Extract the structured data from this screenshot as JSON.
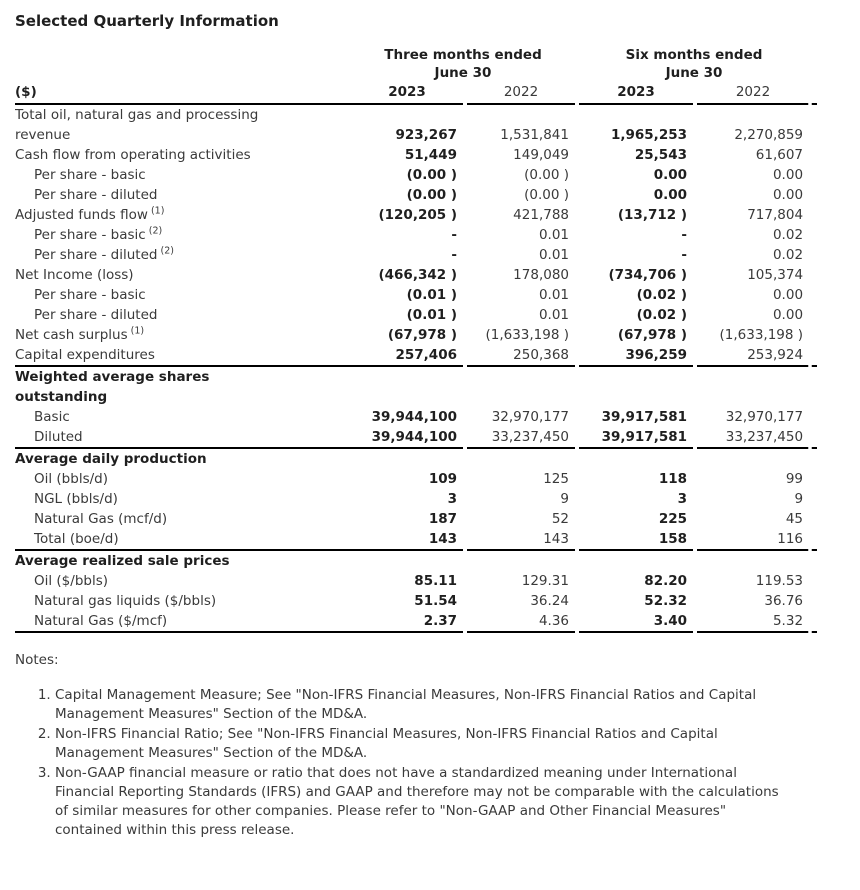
{
  "title": "Selected Quarterly Information",
  "colors": {
    "text": "#3a3a3a",
    "emphasis": "#1f1f1f",
    "rule": "#000000",
    "background": "#ffffff"
  },
  "table": {
    "unit_label": "($)",
    "col_groups": [
      {
        "label": "Three months ended",
        "sub": "June 30"
      },
      {
        "label": "Six months ended",
        "sub": "June 30"
      }
    ],
    "year_headers": [
      "2023",
      "2022",
      "2023",
      "2022"
    ],
    "rows": [
      {
        "type": "data",
        "label": "Total oil, natural gas and processing\nrevenue",
        "indent": false,
        "sup": "",
        "values": [
          "923,267",
          "1,531,841",
          "1,965,253",
          "2,270,859"
        ],
        "rule_below": false
      },
      {
        "type": "data",
        "label": "Cash flow from operating activities",
        "indent": false,
        "sup": "",
        "values": [
          "51,449",
          "149,049",
          "25,543",
          "61,607"
        ],
        "rule_below": false
      },
      {
        "type": "data",
        "label": "Per share - basic",
        "indent": true,
        "sup": "",
        "values": [
          "(0.00 )",
          "(0.00 )",
          "0.00",
          "0.00"
        ],
        "rule_below": false
      },
      {
        "type": "data",
        "label": "Per share - diluted",
        "indent": true,
        "sup": "",
        "values": [
          "(0.00 )",
          "(0.00 )",
          "0.00",
          "0.00"
        ],
        "rule_below": false
      },
      {
        "type": "data",
        "label": "Adjusted funds flow",
        "indent": false,
        "sup": "(1)",
        "values": [
          "(120,205 )",
          "421,788",
          "(13,712 )",
          "717,804"
        ],
        "rule_below": false
      },
      {
        "type": "data",
        "label": "Per share - basic",
        "indent": true,
        "sup": "(2)",
        "values": [
          "-",
          "0.01",
          "-",
          "0.02"
        ],
        "rule_below": false
      },
      {
        "type": "data",
        "label": "Per share - diluted",
        "indent": true,
        "sup": "(2)",
        "values": [
          "-",
          "0.01",
          "-",
          "0.02"
        ],
        "rule_below": false
      },
      {
        "type": "data",
        "label": "Net Income (loss)",
        "indent": false,
        "sup": "",
        "values": [
          "(466,342 )",
          "178,080",
          "(734,706 )",
          "105,374"
        ],
        "rule_below": false
      },
      {
        "type": "data",
        "label": "Per share - basic",
        "indent": true,
        "sup": "",
        "values": [
          "(0.01 )",
          "0.01",
          "(0.02 )",
          "0.00"
        ],
        "rule_below": false
      },
      {
        "type": "data",
        "label": "Per share - diluted",
        "indent": true,
        "sup": "",
        "values": [
          "(0.01 )",
          "0.01",
          "(0.02 )",
          "0.00"
        ],
        "rule_below": false
      },
      {
        "type": "data",
        "label": "Net cash surplus",
        "indent": false,
        "sup": "(1)",
        "values": [
          "(67,978 )",
          "(1,633,198 )",
          "(67,978 )",
          "(1,633,198 )"
        ],
        "rule_below": false
      },
      {
        "type": "data",
        "label": "Capital expenditures",
        "indent": false,
        "sup": "",
        "values": [
          "257,406",
          "250,368",
          "396,259",
          "253,924"
        ],
        "rule_below": true
      },
      {
        "type": "section",
        "label": "Weighted average shares\noutstanding",
        "indent": false,
        "sup": "",
        "values": [
          "",
          "",
          "",
          ""
        ],
        "rule_below": false
      },
      {
        "type": "data",
        "label": "Basic",
        "indent": true,
        "sup": "",
        "values": [
          "39,944,100",
          "32,970,177",
          "39,917,581",
          "32,970,177"
        ],
        "rule_below": false
      },
      {
        "type": "data",
        "label": "Diluted",
        "indent": true,
        "sup": "",
        "values": [
          "39,944,100",
          "33,237,450",
          "39,917,581",
          "33,237,450"
        ],
        "rule_below": true
      },
      {
        "type": "section",
        "label": "Average daily production",
        "indent": false,
        "sup": "",
        "values": [
          "",
          "",
          "",
          ""
        ],
        "rule_below": false
      },
      {
        "type": "data",
        "label": "Oil (bbls/d)",
        "indent": true,
        "sup": "",
        "values": [
          "109",
          "125",
          "118",
          "99"
        ],
        "rule_below": false
      },
      {
        "type": "data",
        "label": "NGL (bbls/d)",
        "indent": true,
        "sup": "",
        "values": [
          "3",
          "9",
          "3",
          "9"
        ],
        "rule_below": false
      },
      {
        "type": "data",
        "label": "Natural Gas (mcf/d)",
        "indent": true,
        "sup": "",
        "values": [
          "187",
          "52",
          "225",
          "45"
        ],
        "rule_below": false
      },
      {
        "type": "data",
        "label": "Total (boe/d)",
        "indent": true,
        "sup": "",
        "values": [
          "143",
          "143",
          "158",
          "116"
        ],
        "rule_below": true
      },
      {
        "type": "section",
        "label": "Average realized sale prices",
        "indent": false,
        "sup": "",
        "values": [
          "",
          "",
          "",
          ""
        ],
        "rule_below": false
      },
      {
        "type": "data",
        "label": "Oil ($/bbls)",
        "indent": true,
        "sup": "",
        "values": [
          "85.11",
          "129.31",
          "82.20",
          "119.53"
        ],
        "rule_below": false
      },
      {
        "type": "data",
        "label": "Natural gas liquids ($/bbls)",
        "indent": true,
        "sup": "",
        "values": [
          "51.54",
          "36.24",
          "52.32",
          "36.76"
        ],
        "rule_below": false
      },
      {
        "type": "data",
        "label": "Natural Gas ($/mcf)",
        "indent": true,
        "sup": "",
        "values": [
          "2.37",
          "4.36",
          "3.40",
          "5.32"
        ],
        "rule_below": true
      }
    ]
  },
  "notes": {
    "heading": "Notes:",
    "items": [
      "Capital Management Measure; See \"Non-IFRS Financial Measures, Non-IFRS Financial Ratios and Capital Management Measures\" Section of the MD&A.",
      "Non-IFRS Financial Ratio; See \"Non-IFRS Financial Measures, Non-IFRS Financial Ratios and Capital Management Measures\" Section of the MD&A.",
      "Non-GAAP financial measure or ratio that does not have a standardized meaning under International Financial Reporting Standards (IFRS) and GAAP and therefore may not be comparable with the calculations of similar measures for other companies. Please refer to \"Non-GAAP and Other Financial Measures\" contained within this press release."
    ]
  }
}
